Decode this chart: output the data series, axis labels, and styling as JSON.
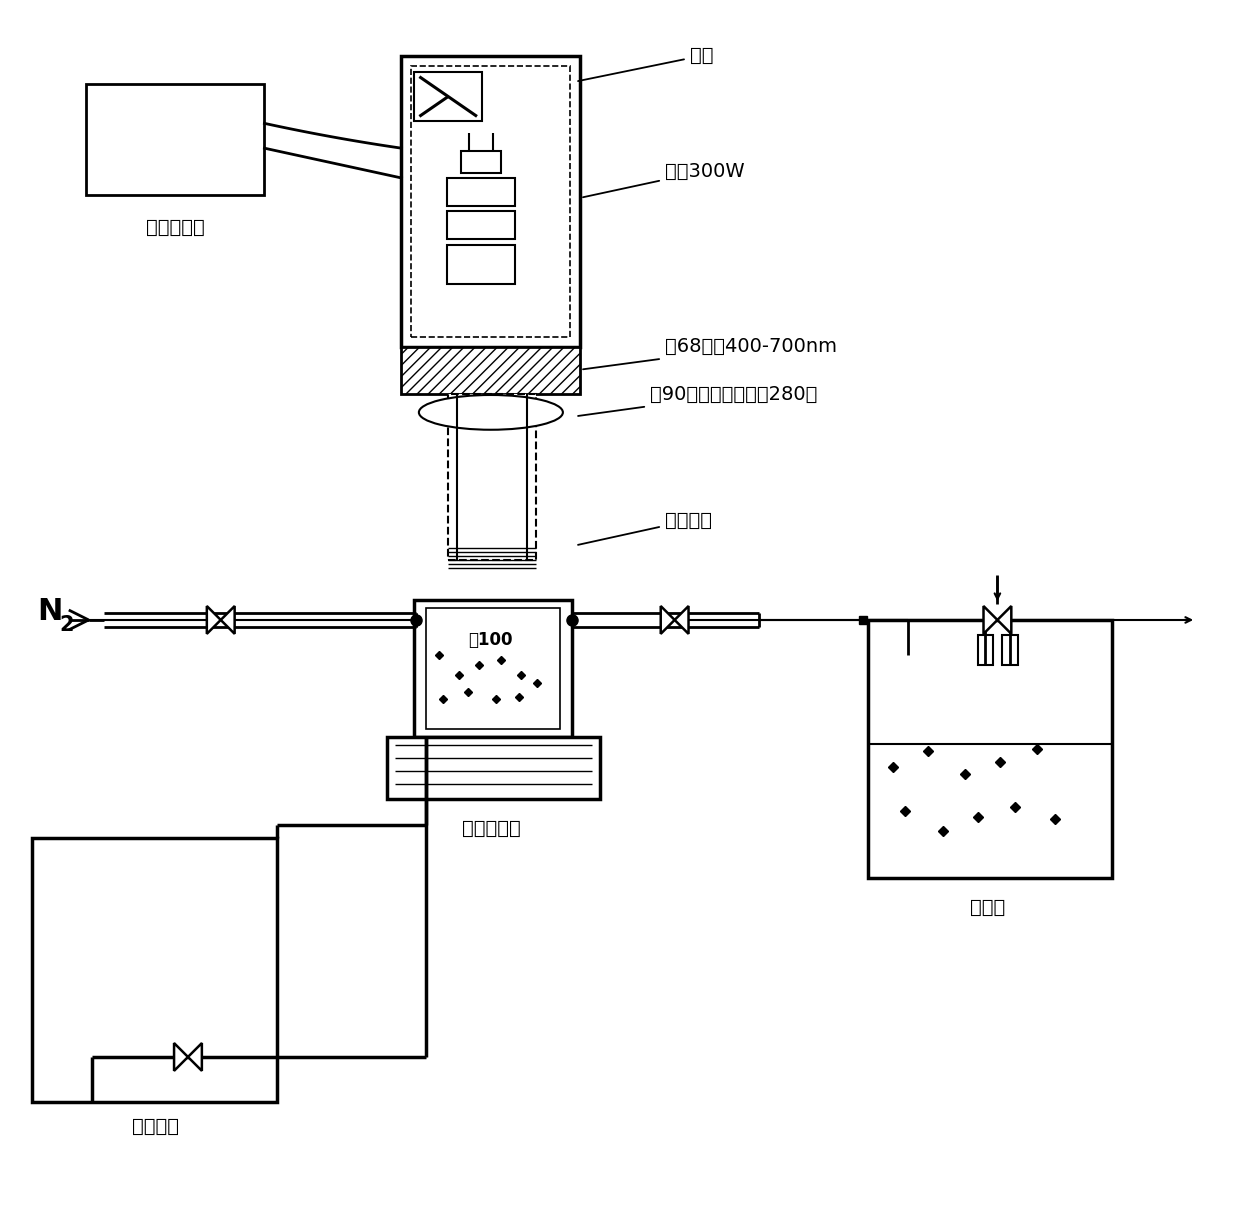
{
  "bg_color": "#ffffff",
  "lc": "#000000",
  "labels": {
    "fan": "风扇",
    "xenon_lamp": "氙灯300W",
    "filter": "隆68滤片400-700nm",
    "collimator": "隉90准直通镜（焦距280）",
    "quartz": "石英玻璃",
    "phi100": "隌100",
    "magnetic_stirrer": "磁力搅拌器",
    "circulating_water": "循环水筒",
    "gas_tank": "集气筒",
    "lamp_controller": "氙灯控制器"
  },
  "fs": 14,
  "lw": 2.0,
  "lw_thin": 1.2,
  "lw_thick": 2.5
}
